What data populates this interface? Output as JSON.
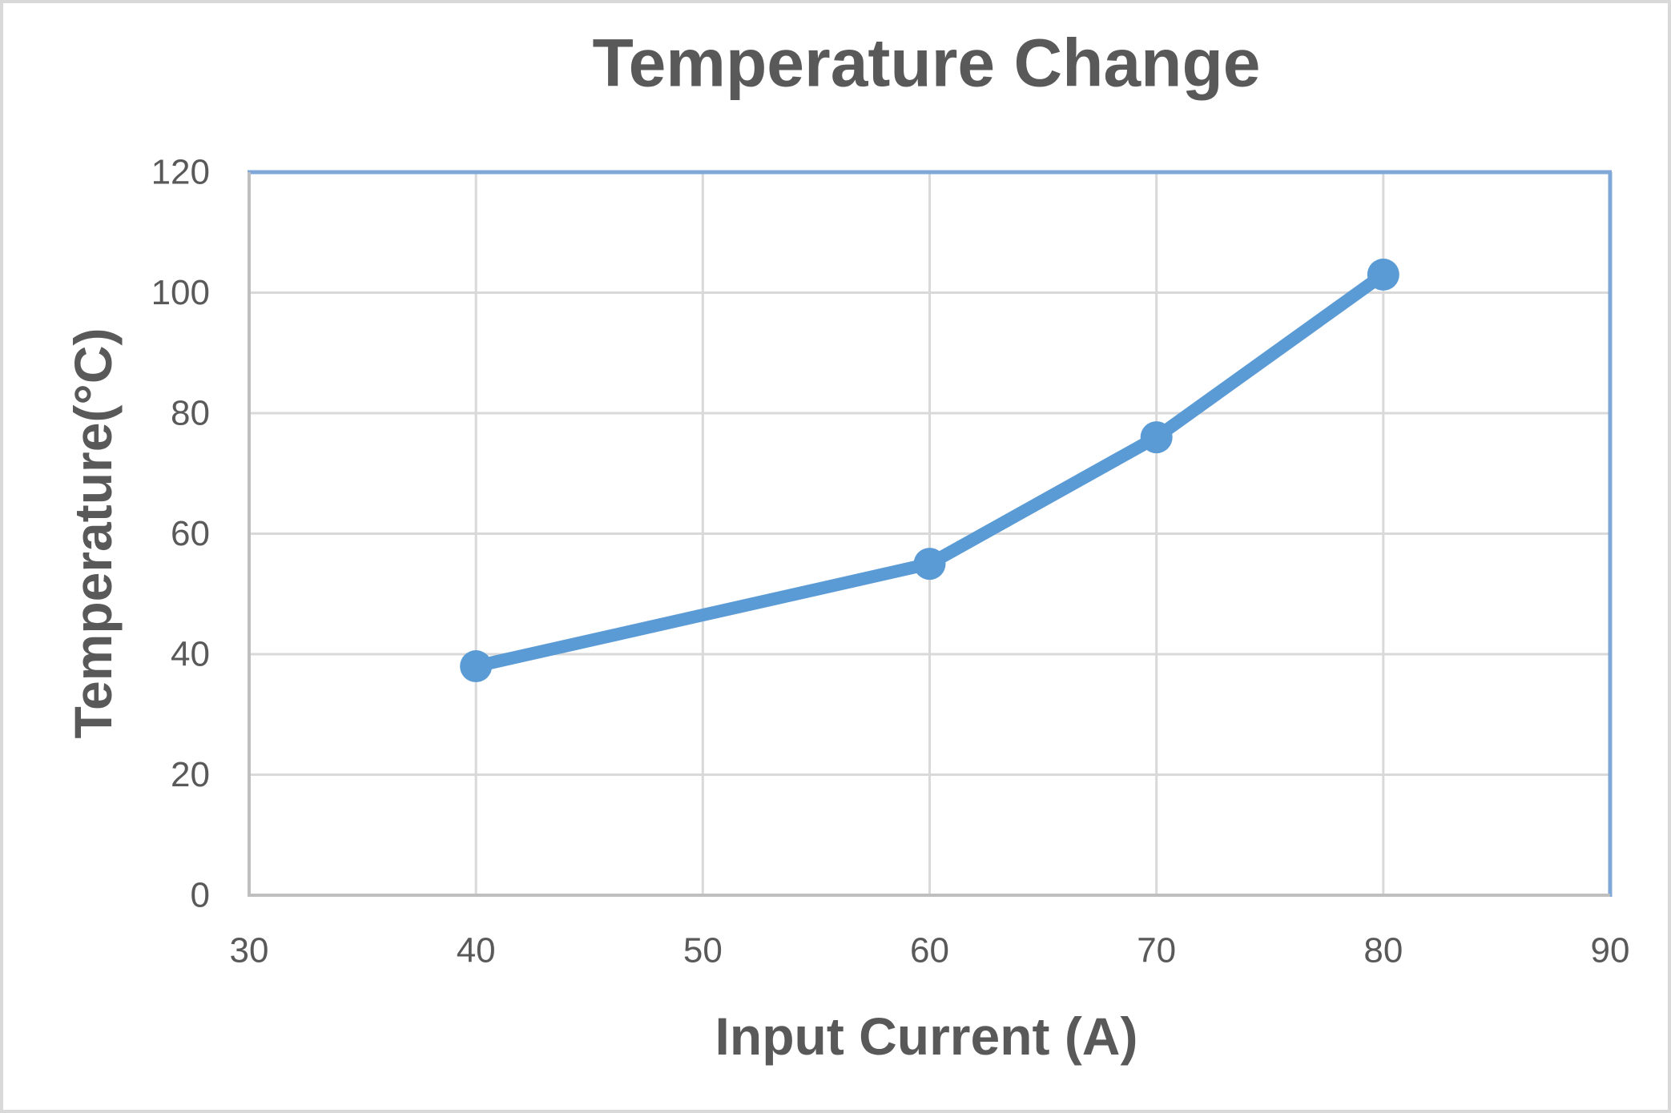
{
  "window": {
    "background": "#ffffff",
    "border_color": "#d9d9d9"
  },
  "chart_data": {
    "type": "line",
    "title": "Temperature Change",
    "xlabel": "Input Current (A)",
    "ylabel": "Temperature(°C)",
    "x": [
      40,
      60,
      70,
      80
    ],
    "y": [
      38,
      55,
      76,
      103
    ],
    "xlim": [
      30,
      90
    ],
    "ylim": [
      0,
      120
    ],
    "x_ticks": [
      30,
      40,
      50,
      60,
      70,
      80,
      90
    ],
    "y_ticks": [
      0,
      20,
      40,
      60,
      80,
      100,
      120
    ],
    "grid": true,
    "legend": "none",
    "marker": "circle",
    "colors": {
      "series": "#5b9bd5",
      "gridline": "#d9d9d9",
      "axis_line": "#bfbfbf",
      "plot_border": "#7fa8d9",
      "text": "#595959"
    }
  }
}
